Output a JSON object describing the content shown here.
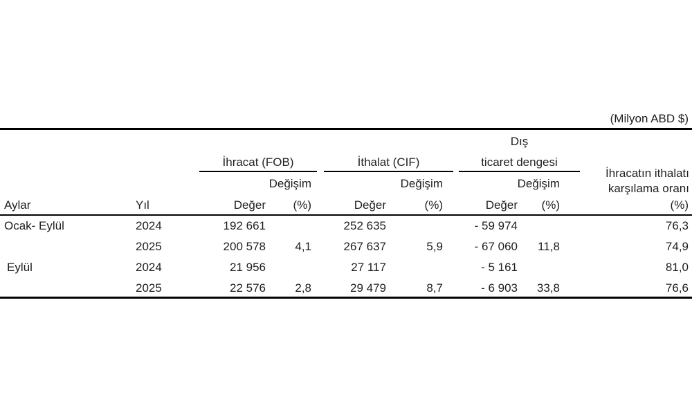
{
  "unit_note": "(Milyon ABD $)",
  "colors": {
    "background": "#ffffff",
    "text": "#1f1f1f",
    "rule": "#000000"
  },
  "header": {
    "aylar": "Aylar",
    "yil": "Yıl",
    "ihracat_group": "İhracat (FOB)",
    "ithalat_group": "İthalat (CIF)",
    "denge_group_line1": "Dış",
    "denge_group_line2": "ticaret dengesi",
    "degisim": "Değişim",
    "deger": "Değer",
    "pct": "(%)",
    "oran_line1": "İhracatın ithalatı",
    "oran_line2": "karşılama oranı",
    "oran_pct": "(%)"
  },
  "rows": [
    {
      "cells": [
        "Ocak- Eylül",
        "2024",
        "192 661",
        "",
        "252 635",
        "",
        "- 59 974",
        "",
        "76,3"
      ]
    },
    {
      "cells": [
        "",
        "2025",
        "200 578",
        "4,1",
        "267 637",
        "5,9",
        "- 67 060",
        "11,8",
        "74,9"
      ]
    },
    {
      "cells": [
        "Eylül",
        "2024",
        "21 956",
        "",
        "27 117",
        "",
        "- 5 161",
        "",
        "81,0"
      ]
    },
    {
      "cells": [
        "",
        "2025",
        "22 576",
        "2,8",
        "29 479",
        "8,7",
        "- 6 903",
        "33,8",
        "76,6"
      ]
    }
  ],
  "chart_data": {
    "type": "table",
    "unit": "(Milyon ABD $)",
    "column_groups": [
      "İhracat (FOB)",
      "İthalat (CIF)",
      "Dış ticaret dengesi",
      "İhracatın ithalatı karşılama oranı (%)"
    ],
    "columns": [
      "Aylar",
      "Yıl",
      "İhracat (FOB) Değer",
      "İhracat (FOB) Değişim (%)",
      "İthalat (CIF) Değer",
      "İthalat (CIF) Değişim (%)",
      "Dış ticaret dengesi Değer",
      "Dış ticaret dengesi Değişim (%)",
      "İhracatın ithalatı karşılama oranı (%)"
    ],
    "rows": [
      [
        "Ocak- Eylül",
        2024,
        192661,
        null,
        252635,
        null,
        -59974,
        null,
        76.3
      ],
      [
        "Ocak- Eylül",
        2025,
        200578,
        4.1,
        267637,
        5.9,
        -67060,
        11.8,
        74.9
      ],
      [
        "Eylül",
        2024,
        21956,
        null,
        27117,
        null,
        -5161,
        null,
        81.0
      ],
      [
        "Eylül",
        2025,
        22576,
        2.8,
        29479,
        8.7,
        -6903,
        33.8,
        76.6
      ]
    ]
  }
}
